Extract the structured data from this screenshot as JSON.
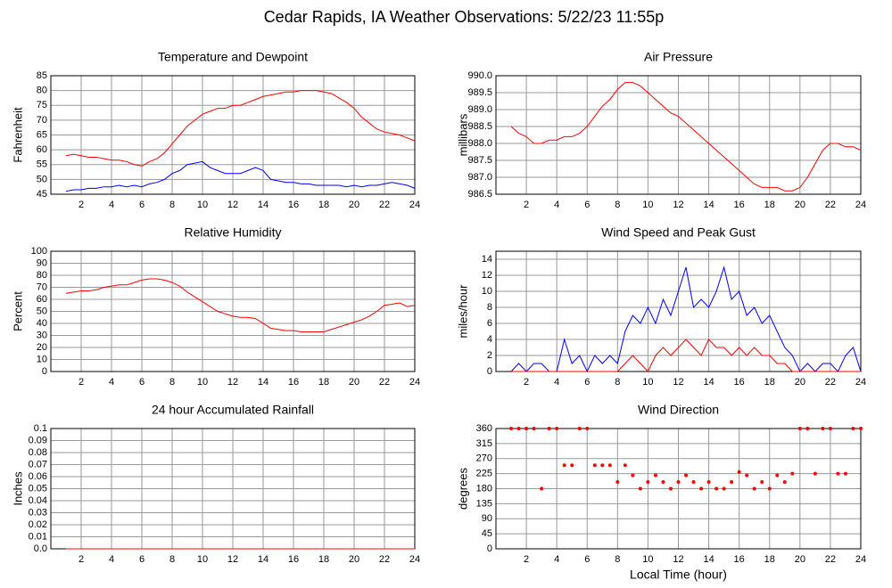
{
  "title": "Cedar Rapids, IA Weather Observations: 5/22/23 11:55p",
  "chart_data": [
    {
      "type": "line",
      "title": "Temperature and Dewpoint",
      "ylabel": "Fahrenheit",
      "x": [
        1,
        1.5,
        2,
        2.5,
        3,
        3.5,
        4,
        4.5,
        5,
        5.5,
        6,
        6.5,
        7,
        7.5,
        8,
        8.5,
        9,
        9.5,
        10,
        10.5,
        11,
        11.5,
        12,
        12.5,
        13,
        13.5,
        14,
        14.5,
        15,
        15.5,
        16,
        16.5,
        17,
        17.5,
        18,
        18.5,
        19,
        19.5,
        20,
        20.5,
        21,
        21.5,
        22,
        22.5,
        23,
        23.5,
        24
      ],
      "xlim": [
        0,
        24
      ],
      "xticks": [
        2,
        4,
        6,
        8,
        10,
        12,
        14,
        16,
        18,
        20,
        22,
        24
      ],
      "ylim": [
        45,
        85
      ],
      "yticks": [
        45,
        50,
        55,
        60,
        65,
        70,
        75,
        80,
        85
      ],
      "grid": true,
      "series": [
        {
          "color": "#ff0000",
          "values": [
            58,
            58.5,
            58,
            57.5,
            57.5,
            57,
            56.5,
            56.5,
            56,
            55,
            54.5,
            56,
            57,
            59,
            62,
            65,
            68,
            70,
            72,
            73,
            74,
            74,
            75,
            75,
            76,
            77,
            78,
            78.5,
            79,
            79.5,
            79.5,
            80,
            80,
            80,
            79.5,
            79,
            77.5,
            76,
            74,
            71,
            69,
            67,
            66,
            65.5,
            65,
            64,
            63
          ]
        },
        {
          "color": "#0000ff",
          "values": [
            46,
            46.5,
            46.5,
            47,
            47,
            47.5,
            47.5,
            48,
            47.5,
            48,
            47.5,
            48.5,
            49,
            50,
            52,
            53,
            55,
            55.5,
            56,
            54,
            53,
            52,
            52,
            52,
            53,
            54,
            53,
            50,
            49.5,
            49,
            49,
            48.5,
            48.5,
            48,
            48,
            48,
            48,
            47.5,
            48,
            47.5,
            48,
            48,
            48.5,
            49,
            48.5,
            48,
            47
          ]
        }
      ]
    },
    {
      "type": "line",
      "title": "Air Pressure",
      "ylabel": "millibars",
      "x": [
        1,
        1.5,
        2,
        2.5,
        3,
        3.5,
        4,
        4.5,
        5,
        5.5,
        6,
        6.5,
        7,
        7.5,
        8,
        8.5,
        9,
        9.5,
        10,
        10.5,
        11,
        11.5,
        12,
        12.5,
        13,
        13.5,
        14,
        14.5,
        15,
        15.5,
        16,
        16.5,
        17,
        17.5,
        18,
        18.5,
        19,
        19.5,
        20,
        20.5,
        21,
        21.5,
        22,
        22.5,
        23,
        23.5,
        24
      ],
      "xlim": [
        0,
        24
      ],
      "xticks": [
        2,
        4,
        6,
        8,
        10,
        12,
        14,
        16,
        18,
        20,
        22,
        24
      ],
      "ylim": [
        986.5,
        990.0
      ],
      "yticks": [
        986.5,
        {
          "value": 987,
          "label": "987.0"
        },
        987.5,
        {
          "value": 988,
          "label": "988.0"
        },
        988.5,
        {
          "value": 989,
          "label": "989.0"
        },
        989.5,
        {
          "value": 990,
          "label": "990.0"
        }
      ],
      "grid": true,
      "series": [
        {
          "color": "#ff0000",
          "values": [
            988.5,
            988.3,
            988.2,
            988.0,
            988.0,
            988.1,
            988.1,
            988.2,
            988.2,
            988.3,
            988.5,
            988.8,
            989.1,
            989.3,
            989.6,
            989.8,
            989.8,
            989.7,
            989.5,
            989.3,
            989.1,
            988.9,
            988.8,
            988.6,
            988.4,
            988.2,
            988.0,
            987.8,
            987.6,
            987.4,
            987.2,
            987.0,
            986.8,
            986.7,
            986.7,
            986.7,
            986.6,
            986.6,
            986.7,
            987.0,
            987.4,
            987.8,
            988.0,
            988.0,
            987.9,
            987.9,
            987.8
          ]
        }
      ]
    },
    {
      "type": "line",
      "title": "Relative Humidity",
      "ylabel": "Percent",
      "x": [
        1,
        1.5,
        2,
        2.5,
        3,
        3.5,
        4,
        4.5,
        5,
        5.5,
        6,
        6.5,
        7,
        7.5,
        8,
        8.5,
        9,
        9.5,
        10,
        10.5,
        11,
        11.5,
        12,
        12.5,
        13,
        13.5,
        14,
        14.5,
        15,
        15.5,
        16,
        16.5,
        17,
        17.5,
        18,
        18.5,
        19,
        19.5,
        20,
        20.5,
        21,
        21.5,
        22,
        22.5,
        23,
        23.5,
        24
      ],
      "xlim": [
        0,
        24
      ],
      "xticks": [
        2,
        4,
        6,
        8,
        10,
        12,
        14,
        16,
        18,
        20,
        22,
        24
      ],
      "ylim": [
        0,
        100
      ],
      "yticks": [
        0,
        10,
        20,
        30,
        40,
        50,
        60,
        70,
        80,
        90,
        100
      ],
      "grid": true,
      "series": [
        {
          "color": "#ff0000",
          "values": [
            65,
            66,
            67,
            67,
            68,
            70,
            71,
            72,
            72,
            74,
            76,
            77,
            77,
            76,
            74,
            71,
            66,
            62,
            58,
            54,
            50,
            48,
            46,
            45,
            45,
            44,
            40,
            36,
            35,
            34,
            34,
            33,
            33,
            33,
            33,
            35,
            37,
            39,
            41,
            43,
            46,
            50,
            55,
            56,
            57,
            54,
            55
          ]
        }
      ]
    },
    {
      "type": "line",
      "title": "Wind Speed and Peak Gust",
      "ylabel": "miles/hour",
      "x": [
        1,
        1.5,
        2,
        2.5,
        3,
        3.5,
        4,
        4.5,
        5,
        5.5,
        6,
        6.5,
        7,
        7.5,
        8,
        8.5,
        9,
        9.5,
        10,
        10.5,
        11,
        11.5,
        12,
        12.5,
        13,
        13.5,
        14,
        14.5,
        15,
        15.5,
        16,
        16.5,
        17,
        17.5,
        18,
        18.5,
        19,
        19.5,
        20,
        20.5,
        21,
        21.5,
        22,
        22.5,
        23,
        23.5,
        24
      ],
      "xlim": [
        0,
        24
      ],
      "xticks": [
        2,
        4,
        6,
        8,
        10,
        12,
        14,
        16,
        18,
        20,
        22,
        24
      ],
      "ylim": [
        0,
        15
      ],
      "yticks": [
        0,
        2,
        4,
        6,
        8,
        10,
        12,
        14
      ],
      "grid": true,
      "series": [
        {
          "color": "#0000ff",
          "values": [
            0,
            1,
            0,
            1,
            1,
            0,
            0,
            4,
            1,
            2,
            0,
            2,
            1,
            2,
            1,
            5,
            7,
            6,
            8,
            6,
            9,
            7,
            10,
            13,
            8,
            9,
            8,
            10,
            13,
            9,
            10,
            7,
            8,
            6,
            7,
            5,
            3,
            2,
            0,
            1,
            0,
            1,
            1,
            0,
            2,
            3,
            0
          ]
        },
        {
          "color": "#ff0000",
          "values": [
            0,
            0,
            0,
            0,
            0,
            0,
            0,
            0,
            0,
            0,
            0,
            0,
            0,
            0,
            0,
            1,
            2,
            1,
            0,
            2,
            3,
            2,
            3,
            4,
            3,
            2,
            4,
            3,
            3,
            2,
            3,
            2,
            3,
            2,
            2,
            1,
            1,
            0,
            0,
            0,
            0,
            0,
            0,
            0,
            0,
            0,
            0
          ]
        }
      ]
    },
    {
      "type": "line",
      "title": "24 hour Accumulated Rainfall",
      "ylabel": "Inches",
      "x": [
        1,
        1.5,
        2,
        2.5,
        3,
        3.5,
        4,
        4.5,
        5,
        5.5,
        6,
        6.5,
        7,
        7.5,
        8,
        8.5,
        9,
        9.5,
        10,
        10.5,
        11,
        11.5,
        12,
        12.5,
        13,
        13.5,
        14,
        14.5,
        15,
        15.5,
        16,
        16.5,
        17,
        17.5,
        18,
        18.5,
        19,
        19.5,
        20,
        20.5,
        21,
        21.5,
        22,
        22.5,
        23,
        23.5,
        24
      ],
      "xlim": [
        0,
        24
      ],
      "xticks": [
        2,
        4,
        6,
        8,
        10,
        12,
        14,
        16,
        18,
        20,
        22,
        24
      ],
      "ylim": [
        0,
        0.1
      ],
      "yticks": [
        {
          "value": 0,
          "label": "0.0"
        },
        0.01,
        0.02,
        0.03,
        0.04,
        0.05,
        0.06,
        0.07,
        0.08,
        0.09,
        0.1
      ],
      "grid": true,
      "series": [
        {
          "color": "#ff0000",
          "values": [
            0,
            0,
            0,
            0,
            0,
            0,
            0,
            0,
            0,
            0,
            0,
            0,
            0,
            0,
            0,
            0,
            0,
            0,
            0,
            0,
            0,
            0,
            0,
            0,
            0,
            0,
            0,
            0,
            0,
            0,
            0,
            0,
            0,
            0,
            0,
            0,
            0,
            0,
            0,
            0,
            0,
            0,
            0,
            0,
            0,
            0,
            0
          ]
        }
      ]
    },
    {
      "type": "scatter",
      "title": "Wind Direction",
      "ylabel": "degrees",
      "xlabel": "Local Time (hour)",
      "x": [
        1,
        1.5,
        2,
        2.5,
        3,
        3.5,
        4,
        4.5,
        5,
        5.5,
        6,
        6.5,
        7,
        7.5,
        8,
        8.5,
        9,
        9.5,
        10,
        10.5,
        11,
        11.5,
        12,
        12.5,
        13,
        13.5,
        14,
        14.5,
        15,
        15.5,
        16,
        16.5,
        17,
        17.5,
        18,
        18.5,
        19,
        19.5,
        20,
        20.5,
        21,
        21.5,
        22,
        22.5,
        23,
        23.5,
        24
      ],
      "xlim": [
        0,
        24
      ],
      "xticks": [
        2,
        4,
        6,
        8,
        10,
        12,
        14,
        16,
        18,
        20,
        22,
        24
      ],
      "ylim": [
        0,
        360
      ],
      "yticks": [
        0,
        45,
        90,
        135,
        180,
        225,
        270,
        315,
        360
      ],
      "grid": true,
      "series": [
        {
          "color": "#ff0000",
          "values": [
            360,
            360,
            360,
            360,
            180,
            360,
            360,
            250,
            250,
            360,
            360,
            250,
            250,
            250,
            200,
            250,
            220,
            180,
            200,
            220,
            200,
            180,
            200,
            220,
            200,
            180,
            200,
            180,
            180,
            200,
            230,
            220,
            180,
            200,
            180,
            220,
            200,
            225,
            360,
            360,
            225,
            360,
            360,
            225,
            225,
            360,
            360
          ]
        }
      ]
    }
  ]
}
